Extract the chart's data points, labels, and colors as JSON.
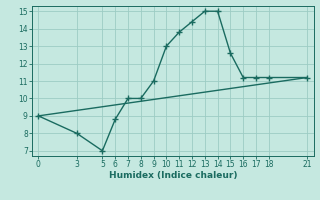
{
  "xlabel": "Humidex (Indice chaleur)",
  "bg_color": "#c5e8e0",
  "grid_color": "#9dccc4",
  "line_color": "#1a6b60",
  "line1_x": [
    0,
    3,
    5,
    6,
    7,
    8,
    9,
    10,
    11,
    12,
    13,
    14,
    15,
    16,
    17,
    18,
    21
  ],
  "line1_y": [
    9.0,
    8.0,
    7.0,
    8.8,
    10.0,
    10.0,
    11.0,
    13.0,
    13.8,
    14.4,
    15.0,
    15.0,
    12.6,
    11.2,
    11.2,
    11.2,
    11.2
  ],
  "line2_x": [
    0,
    21
  ],
  "line2_y": [
    9.0,
    11.2
  ],
  "xlim": [
    -0.5,
    21.5
  ],
  "ylim": [
    6.7,
    15.3
  ],
  "xticks": [
    0,
    3,
    5,
    6,
    7,
    8,
    9,
    10,
    11,
    12,
    13,
    14,
    15,
    16,
    17,
    18,
    21
  ],
  "yticks": [
    7,
    8,
    9,
    10,
    11,
    12,
    13,
    14,
    15
  ],
  "marker": "+",
  "markersize": 4,
  "linewidth": 1.0,
  "tick_labelsize": 5.5,
  "xlabel_fontsize": 6.5
}
